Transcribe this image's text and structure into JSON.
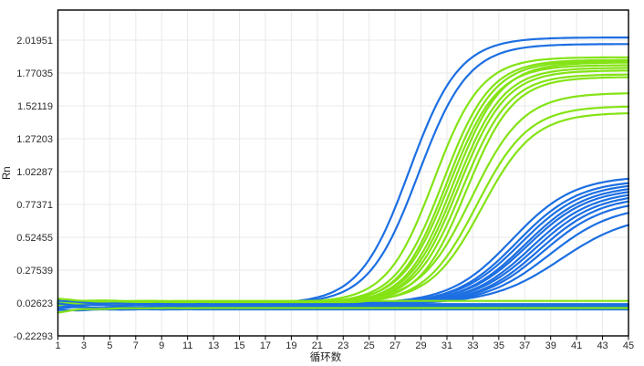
{
  "chart_data": {
    "type": "line",
    "title": "",
    "xlabel": "循环数",
    "ylabel": "Rn",
    "x_ticks": [
      1,
      3,
      5,
      7,
      9,
      11,
      13,
      15,
      17,
      19,
      21,
      23,
      25,
      27,
      29,
      31,
      33,
      35,
      37,
      39,
      41,
      43,
      45
    ],
    "y_tick_labels": [
      "2.01951",
      "1.77035",
      "1.52119",
      "1.27203",
      "1.02287",
      "0.77371",
      "0.52455",
      "0.27539",
      "0.02623",
      "-0.22293"
    ],
    "xlim": [
      1,
      45
    ],
    "ylim": [
      -0.22293,
      2.2477
    ],
    "grid": true,
    "legend": false,
    "colors": {
      "blue": "#1c6fe2",
      "green": "#84e315",
      "grid": "#e9e9e9",
      "axis": "#000000",
      "tick_text": "#2b2b2b"
    },
    "curve_model": "value(c) = baseline + (plateau - baseline) / (1 + exp(-rate*(c - midpoint))); flat: value(c) = value; start_offset decays over first cycles",
    "series": [
      {
        "name": "blue-late-1",
        "group": "blue-late",
        "color": "blue",
        "type": "sigmoid",
        "baseline": 0.02,
        "midpoint": 36.0,
        "rate": 0.42,
        "plateau": 0.99,
        "start_offset": 0.008
      },
      {
        "name": "blue-late-2",
        "group": "blue-late",
        "color": "blue",
        "type": "sigmoid",
        "baseline": 0.015,
        "midpoint": 36.4,
        "rate": 0.42,
        "plateau": 0.96,
        "start_offset": -0.006
      },
      {
        "name": "blue-late-3",
        "group": "blue-late",
        "color": "blue",
        "type": "sigmoid",
        "baseline": 0.02,
        "midpoint": 36.7,
        "rate": 0.42,
        "plateau": 0.94,
        "start_offset": 0.004
      },
      {
        "name": "blue-late-4",
        "group": "blue-late",
        "color": "blue",
        "type": "sigmoid",
        "baseline": 0.015,
        "midpoint": 37.0,
        "rate": 0.42,
        "plateau": 0.92,
        "start_offset": -0.01
      },
      {
        "name": "blue-late-5",
        "group": "blue-late",
        "color": "blue",
        "type": "sigmoid",
        "baseline": 0.02,
        "midpoint": 37.2,
        "rate": 0.42,
        "plateau": 0.9,
        "start_offset": 0.012
      },
      {
        "name": "blue-late-6",
        "group": "blue-late",
        "color": "blue",
        "type": "sigmoid",
        "baseline": 0.015,
        "midpoint": 37.5,
        "rate": 0.42,
        "plateau": 0.88,
        "start_offset": -0.004
      },
      {
        "name": "blue-late-7",
        "group": "blue-late",
        "color": "blue",
        "type": "sigmoid",
        "baseline": 0.02,
        "midpoint": 37.8,
        "rate": 0.42,
        "plateau": 0.86,
        "start_offset": 0.006
      },
      {
        "name": "blue-late-8",
        "group": "blue-late",
        "color": "blue",
        "type": "sigmoid",
        "baseline": 0.015,
        "midpoint": 38.1,
        "rate": 0.42,
        "plateau": 0.84,
        "start_offset": -0.008
      },
      {
        "name": "blue-late-9",
        "group": "blue-late",
        "color": "blue",
        "type": "sigmoid",
        "baseline": 0.02,
        "midpoint": 38.4,
        "rate": 0.42,
        "plateau": 0.81,
        "start_offset": 0.01
      },
      {
        "name": "blue-late-10",
        "group": "blue-late",
        "color": "blue",
        "type": "sigmoid",
        "baseline": 0.015,
        "midpoint": 38.9,
        "rate": 0.4,
        "plateau": 0.77,
        "start_offset": -0.012
      },
      {
        "name": "blue-late-11",
        "group": "blue-late",
        "color": "blue",
        "type": "sigmoid",
        "baseline": 0.02,
        "midpoint": 39.8,
        "rate": 0.38,
        "plateau": 0.7,
        "start_offset": 0.005
      },
      {
        "name": "blue-early-1",
        "group": "blue-early",
        "color": "blue",
        "type": "sigmoid",
        "baseline": 0.02,
        "midpoint": 28.1,
        "rate": 0.52,
        "plateau": 2.04,
        "start_offset": 0.01
      },
      {
        "name": "blue-early-2",
        "group": "blue-early",
        "color": "blue",
        "type": "sigmoid",
        "baseline": 0.02,
        "midpoint": 28.8,
        "rate": 0.52,
        "plateau": 1.99,
        "start_offset": -0.006
      },
      {
        "name": "green-1",
        "group": "green-main",
        "color": "green",
        "type": "sigmoid",
        "baseline": 0.03,
        "midpoint": 30.0,
        "rate": 0.55,
        "plateau": 1.89,
        "start_offset": 0.008
      },
      {
        "name": "green-2",
        "group": "green-main",
        "color": "green",
        "type": "sigmoid",
        "baseline": 0.025,
        "midpoint": 30.7,
        "rate": 0.55,
        "plateau": 1.87,
        "start_offset": -0.01
      },
      {
        "name": "green-3",
        "group": "green-main",
        "color": "green",
        "type": "sigmoid",
        "baseline": 0.02,
        "midpoint": 31.0,
        "rate": 0.55,
        "plateau": 1.86,
        "start_offset": 0.012
      },
      {
        "name": "green-4",
        "group": "green-main",
        "color": "green",
        "type": "sigmoid",
        "baseline": 0.03,
        "midpoint": 31.2,
        "rate": 0.55,
        "plateau": 1.83,
        "start_offset": -0.016
      },
      {
        "name": "green-5",
        "group": "green-main",
        "color": "green",
        "type": "sigmoid",
        "baseline": 0.02,
        "midpoint": 31.5,
        "rate": 0.55,
        "plateau": 1.85,
        "start_offset": 0.006
      },
      {
        "name": "green-6",
        "group": "green-main",
        "color": "green",
        "type": "sigmoid",
        "baseline": 0.025,
        "midpoint": 31.7,
        "rate": 0.55,
        "plateau": 1.81,
        "start_offset": -0.008
      },
      {
        "name": "green-7",
        "group": "green-main",
        "color": "green",
        "type": "sigmoid",
        "baseline": 0.02,
        "midpoint": 31.9,
        "rate": 0.55,
        "plateau": 1.79,
        "start_offset": 0.014
      },
      {
        "name": "green-8",
        "group": "green-main",
        "color": "green",
        "type": "sigmoid",
        "baseline": 0.03,
        "midpoint": 32.2,
        "rate": 0.55,
        "plateau": 1.76,
        "start_offset": -0.012
      },
      {
        "name": "green-9",
        "group": "green-main",
        "color": "green",
        "type": "sigmoid",
        "baseline": 0.02,
        "midpoint": 32.5,
        "rate": 0.55,
        "plateau": 1.74,
        "start_offset": 0.004
      },
      {
        "name": "green-straggler-1",
        "group": "green-straggler",
        "color": "green",
        "type": "sigmoid",
        "baseline": 0.03,
        "midpoint": 32.9,
        "rate": 0.5,
        "plateau": 1.62,
        "start_offset": -0.014
      },
      {
        "name": "green-straggler-2",
        "group": "green-straggler",
        "color": "green",
        "type": "sigmoid",
        "baseline": 0.02,
        "midpoint": 33.3,
        "rate": 0.5,
        "plateau": 1.52,
        "start_offset": 0.01
      },
      {
        "name": "green-straggler-3",
        "group": "green-straggler",
        "color": "green",
        "type": "sigmoid",
        "baseline": 0.03,
        "midpoint": 33.7,
        "rate": 0.5,
        "plateau": 1.47,
        "start_offset": -0.006
      },
      {
        "name": "flat-blue-1",
        "group": "flat-blue",
        "color": "blue",
        "type": "flat",
        "value": 0.018,
        "start_offset": 0.03
      },
      {
        "name": "flat-blue-2",
        "group": "flat-blue",
        "color": "blue",
        "type": "flat",
        "value": 0.006,
        "start_offset": 0.012
      },
      {
        "name": "flat-blue-3",
        "group": "flat-blue",
        "color": "blue",
        "type": "flat",
        "value": -0.008,
        "start_offset": 0.0
      },
      {
        "name": "flat-blue-4",
        "group": "flat-blue",
        "color": "blue",
        "type": "flat",
        "value": -0.022,
        "start_offset": -0.01
      },
      {
        "name": "flat-green-1",
        "group": "flat-green",
        "color": "green",
        "type": "flat",
        "value": -0.012,
        "start_offset": -0.03
      },
      {
        "name": "flat-green-2",
        "group": "flat-green",
        "color": "green",
        "type": "flat",
        "value": 0.042,
        "start_offset": 0.012
      }
    ]
  }
}
